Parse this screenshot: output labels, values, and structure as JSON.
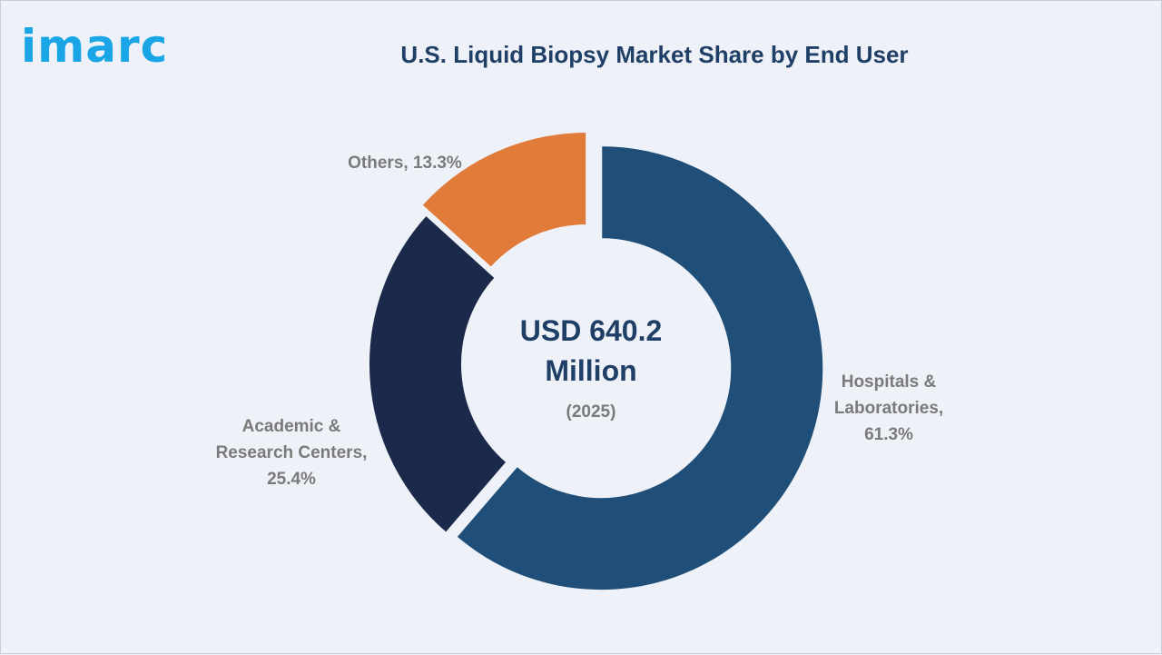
{
  "logo": {
    "text": "imarc",
    "color": "#1aa6e6"
  },
  "chart_data": {
    "type": "pie",
    "title": "U.S. Liquid Biopsy Market Share by End User",
    "donut": true,
    "center_label": {
      "line1": "USD 640.2",
      "line2": "Million",
      "line3": "(2025)"
    },
    "slices": [
      {
        "name": "Hospitals & Laboratories",
        "value": 61.3,
        "label_lines": [
          "Hospitals &",
          "Laboratories,",
          "61.3%"
        ],
        "color": "#1f4e78",
        "exploded": true
      },
      {
        "name": "Academic & Research Centers",
        "value": 25.4,
        "label_lines": [
          "Academic &",
          "Research Centers,",
          "25.4%"
        ],
        "color": "#1b2a4a",
        "exploded": false
      },
      {
        "name": "Others",
        "value": 13.3,
        "label_lines": [
          "Others, 13.3%"
        ],
        "color": "#e07b39",
        "exploded": true
      }
    ]
  }
}
